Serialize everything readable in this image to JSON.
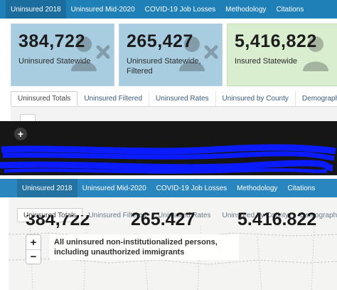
{
  "nav": {
    "tabs": [
      "Uninsured 2018",
      "Uninsured Mid-2020",
      "COVID-19 Job Losses",
      "Methodology",
      "Citations"
    ]
  },
  "cards": [
    {
      "value": "384,722",
      "label": "Uninsured Statewide",
      "icon": "uninsured-person-icon"
    },
    {
      "value": "265,427",
      "label": "Uninsured Statewide, Filtered",
      "icon": "uninsured-person-icon"
    },
    {
      "value": "5,416,822",
      "label": "Insured Statewide",
      "icon": "insured-person-icon"
    }
  ],
  "subtabs": [
    "Uninsured Totals",
    "Uninsured Filtered",
    "Uninsured Rates",
    "Uninsured by County",
    "Demographic"
  ],
  "overlap": {
    "tabs": [
      "Uninsured Totals",
      "Uninsured Filtered",
      "Uninsured Rates",
      "Uninsured by County",
      "Demographic"
    ],
    "numbers": [
      "384,722",
      "265.427",
      "5.416.822"
    ]
  },
  "map": {
    "zoom_in": "+",
    "zoom_out": "−",
    "description": "All uninsured non-institutionalized persons, including unauthorized immigrants"
  },
  "colors": {
    "nav_blue": "#1f80b8",
    "card_blue": "#a9cde0",
    "card_green": "#d9eecf",
    "scribble": "#0a1cff"
  }
}
